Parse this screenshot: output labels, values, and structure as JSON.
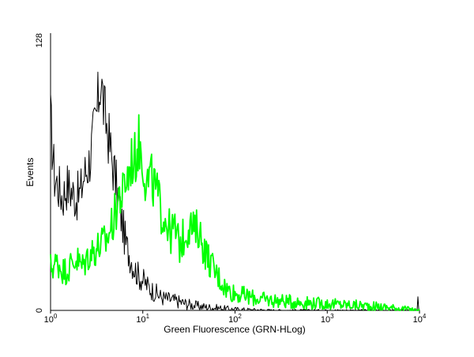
{
  "chart_data": {
    "type": "line",
    "title": "",
    "xlabel": "Green Fluorescence (GRN-HLog)",
    "ylabel": "Events",
    "xscale": "log",
    "xlim": [
      1,
      10000
    ],
    "ylim": [
      0,
      128
    ],
    "x_ticks": [
      {
        "base": "10",
        "exp": "0"
      },
      {
        "base": "10",
        "exp": "1"
      },
      {
        "base": "10",
        "exp": "2"
      },
      {
        "base": "10",
        "exp": "3"
      },
      {
        "base": "10",
        "exp": "4"
      }
    ],
    "y_ticks": [
      "0",
      "128"
    ],
    "grid": false,
    "legend": "none",
    "series": [
      {
        "color": "#000000",
        "x": [
          1.0,
          1.1,
          1.2,
          1.35,
          1.5,
          1.7,
          1.9,
          2.1,
          2.3,
          2.6,
          2.9,
          3.2,
          3.5,
          3.8,
          4.2,
          4.6,
          5.0,
          5.5,
          6.0,
          6.6,
          7.3,
          8.0,
          9.0,
          10.0,
          12.0,
          14.0,
          16.0,
          20.0,
          25.0,
          30.0,
          40.0,
          50.0,
          70.0,
          100.0,
          150.0,
          300.0,
          1000.0,
          3000.0,
          9500.0,
          9700.0,
          9800.0,
          10000.0
        ],
        "y": [
          88,
          62,
          58,
          52,
          58,
          55,
          52,
          54,
          62,
          68,
          80,
          92,
          108,
          92,
          82,
          70,
          62,
          50,
          40,
          30,
          25,
          20,
          16,
          14,
          10,
          8,
          6,
          5,
          4,
          3,
          2,
          1.5,
          1,
          0.5,
          0.3,
          0,
          0,
          0,
          0,
          7,
          2,
          0
        ]
      },
      {
        "color": "#00ff00",
        "x": [
          1.0,
          1.2,
          1.4,
          1.6,
          1.9,
          2.2,
          2.6,
          3.0,
          3.5,
          4.0,
          4.5,
          5.0,
          5.5,
          6.0,
          6.5,
          7.0,
          7.5,
          8.0,
          8.5,
          9.0,
          10.0,
          11.0,
          12.0,
          14.0,
          16.0,
          18.0,
          20.0,
          22.0,
          25.0,
          28.0,
          32.0,
          36.0,
          40.0,
          45.0,
          50.0,
          60.0,
          70.0,
          80.0,
          100.0,
          150.0,
          200.0,
          400.0,
          1000.0,
          3000.0,
          6000.0,
          10000.0
        ],
        "y": [
          20,
          22,
          18,
          20,
          24,
          20,
          26,
          28,
          30,
          32,
          38,
          44,
          54,
          52,
          60,
          62,
          70,
          68,
          72,
          78,
          70,
          58,
          62,
          55,
          45,
          42,
          35,
          38,
          30,
          34,
          40,
          36,
          38,
          30,
          25,
          18,
          14,
          10,
          8,
          6,
          5,
          4,
          3,
          2,
          1,
          0
        ]
      }
    ]
  }
}
